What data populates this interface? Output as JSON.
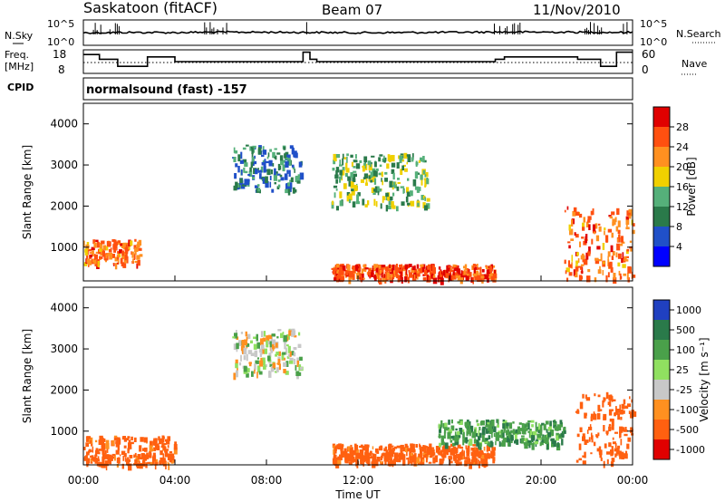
{
  "header": {
    "station": "Saskatoon (fitACF)",
    "beam": "Beam 07",
    "date": "11/Nov/2010"
  },
  "sky_panel": {
    "left_label": "N.Sky",
    "left_ticks": [
      "10^5",
      "10^0"
    ],
    "right_ticks": [
      "10^5",
      "10^0"
    ],
    "right_label": "N.Search",
    "right_legend_line": "dotted"
  },
  "freq_panel": {
    "left_label_line1": "Freq.",
    "left_label_line2": "[MHz]",
    "left_ticks": [
      "18",
      "8"
    ],
    "right_ticks": [
      "60",
      "0"
    ],
    "right_label": "Nave",
    "right_legend_line": "dotted"
  },
  "cpid": {
    "label": "CPID",
    "value": "normalsound (fast) -157"
  },
  "axes": {
    "ylabel": "Slant Range [km]",
    "xlabel": "Time UT",
    "x_ticks": [
      "00:00",
      "04:00",
      "08:00",
      "12:00",
      "16:00",
      "20:00",
      "00:00"
    ],
    "y_ticks": [
      "1000",
      "2000",
      "3000",
      "4000"
    ]
  },
  "power_scale": {
    "label": "Power [dB]",
    "ticks": [
      "28",
      "24",
      "20",
      "16",
      "12",
      "8",
      "4"
    ],
    "colors": [
      "#0000ff",
      "#2050c8",
      "#2a7a4a",
      "#55b07a",
      "#f0d000",
      "#ff9020",
      "#ff5010",
      "#e00000"
    ]
  },
  "velocity_scale": {
    "label": "Velocity [m s⁻¹]",
    "ticks": [
      "1000",
      "500",
      "100",
      "25",
      "-25",
      "-100",
      "-500",
      "-1000"
    ],
    "colors": [
      "#2040c0",
      "#2a7a4a",
      "#4aa04a",
      "#90e060",
      "#c8c8c8",
      "#ff9020",
      "#ff6010",
      "#e00000"
    ]
  },
  "chart_data": [
    {
      "type": "line",
      "title": "N.Sky",
      "x": [
        0,
        2,
        4,
        6,
        8,
        10,
        12,
        14,
        16,
        18,
        20,
        22,
        24
      ],
      "y_scale": "log",
      "y_range": [
        1,
        100000
      ],
      "series": [
        {
          "name": "N.Sky",
          "values": [
            300,
            350,
            320,
            400,
            380,
            350,
            300,
            330,
            360,
            420,
            400,
            380,
            350
          ]
        }
      ]
    },
    {
      "type": "line",
      "title": "Freq.",
      "x": [
        0,
        0.7,
        1.5,
        2.0,
        2.8,
        4.0,
        8.0,
        9.6,
        9.9,
        10.2,
        16.0,
        18.0,
        18.4,
        20.0,
        21.6,
        22.6,
        23.3,
        24.0
      ],
      "y_range": [
        8,
        18
      ],
      "series": [
        {
          "name": "Freq.",
          "values": [
            16,
            14,
            11,
            11,
            15,
            13,
            13,
            17,
            14,
            13,
            13,
            14,
            15,
            15,
            14,
            11,
            17,
            17
          ]
        }
      ]
    },
    {
      "type": "heatmap",
      "title": "Power [dB]",
      "xlabel": "Time UT",
      "ylabel": "Slant Range [km]",
      "x_range_hours": [
        0,
        24
      ],
      "y_range_km": [
        180,
        4500
      ],
      "data_gap_hours": [
        10.1,
        10.8
      ],
      "color_scale_db": [
        4,
        8,
        12,
        16,
        20,
        24,
        28
      ],
      "features": [
        {
          "hours": [
            0,
            2.5
          ],
          "range_km": [
            600,
            1200
          ],
          "approx_power_db": 24
        },
        {
          "hours": [
            6.5,
            9.5
          ],
          "range_km": [
            2400,
            3500
          ],
          "approx_power_db": 10
        },
        {
          "hours": [
            10.8,
            15.0
          ],
          "range_km": [
            2000,
            3300
          ],
          "approx_power_db": 14
        },
        {
          "hours": [
            10.8,
            18.0
          ],
          "range_km": [
            250,
            600
          ],
          "approx_power_db": 26
        },
        {
          "hours": [
            21.0,
            24.0
          ],
          "range_km": [
            250,
            2000
          ],
          "approx_power_db": 24
        }
      ]
    },
    {
      "type": "heatmap",
      "title": "Velocity [m s⁻¹]",
      "xlabel": "Time UT",
      "ylabel": "Slant Range [km]",
      "x_range_hours": [
        0,
        24
      ],
      "y_range_km": [
        180,
        4500
      ],
      "data_gap_hours": [
        10.1,
        10.8
      ],
      "color_scale_ms": [
        -1000,
        -500,
        -100,
        -25,
        25,
        100,
        500,
        1000
      ],
      "features": [
        {
          "hours": [
            0,
            4
          ],
          "range_km": [
            200,
            900
          ],
          "approx_velocity_ms": -150
        },
        {
          "hours": [
            6.5,
            9.5
          ],
          "range_km": [
            2400,
            3500
          ],
          "approx_velocity_ms": 0
        },
        {
          "hours": [
            10.8,
            18.0
          ],
          "range_km": [
            250,
            700
          ],
          "approx_velocity_ms": -150
        },
        {
          "hours": [
            15.5,
            21.0
          ],
          "range_km": [
            700,
            1300
          ],
          "approx_velocity_ms": 80
        },
        {
          "hours": [
            21.5,
            24.0
          ],
          "range_km": [
            250,
            2000
          ],
          "approx_velocity_ms": -400
        }
      ]
    }
  ]
}
